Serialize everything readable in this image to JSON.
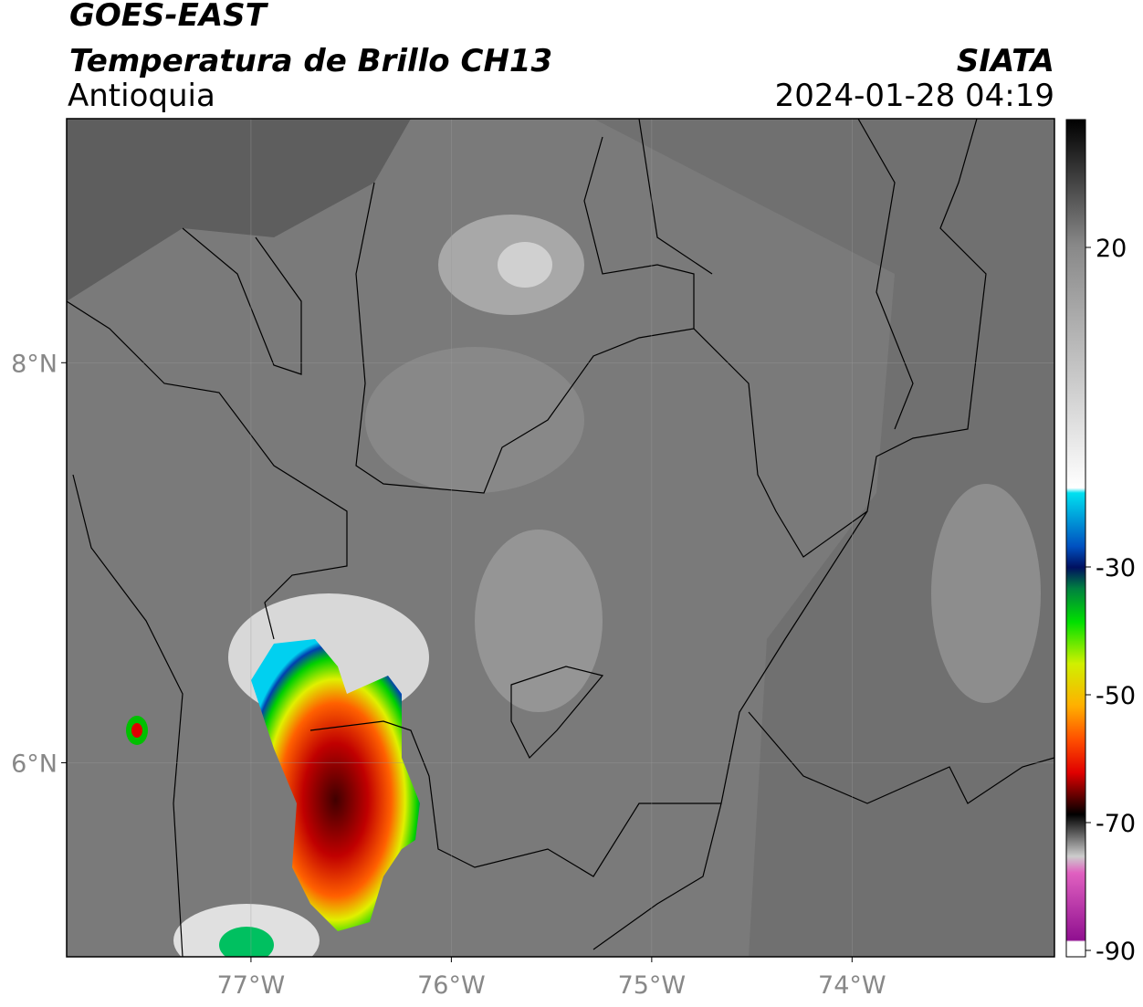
{
  "header": {
    "title": "GOES-EAST",
    "subtitle": "Temperatura de Brillo CH13",
    "region": "Antioquia",
    "source": "SIATA",
    "datetime": "2024-01-28 04:19"
  },
  "map": {
    "xlim": [
      -77.92,
      -72.99
    ],
    "ylim": [
      5.03,
      9.22
    ],
    "xticks": [
      {
        "value": -77,
        "label": "77°W"
      },
      {
        "value": -76,
        "label": "76°W"
      },
      {
        "value": -75,
        "label": "75°W"
      },
      {
        "value": -74,
        "label": "74°W"
      }
    ],
    "yticks": [
      {
        "value": 6,
        "label": "6°N"
      },
      {
        "value": 8,
        "label": "8°N"
      }
    ],
    "grid": true
  },
  "colorbar": {
    "lim": [
      -91,
      40
    ],
    "ticks": [
      -90,
      -70,
      -50,
      -30,
      20
    ]
  }
}
